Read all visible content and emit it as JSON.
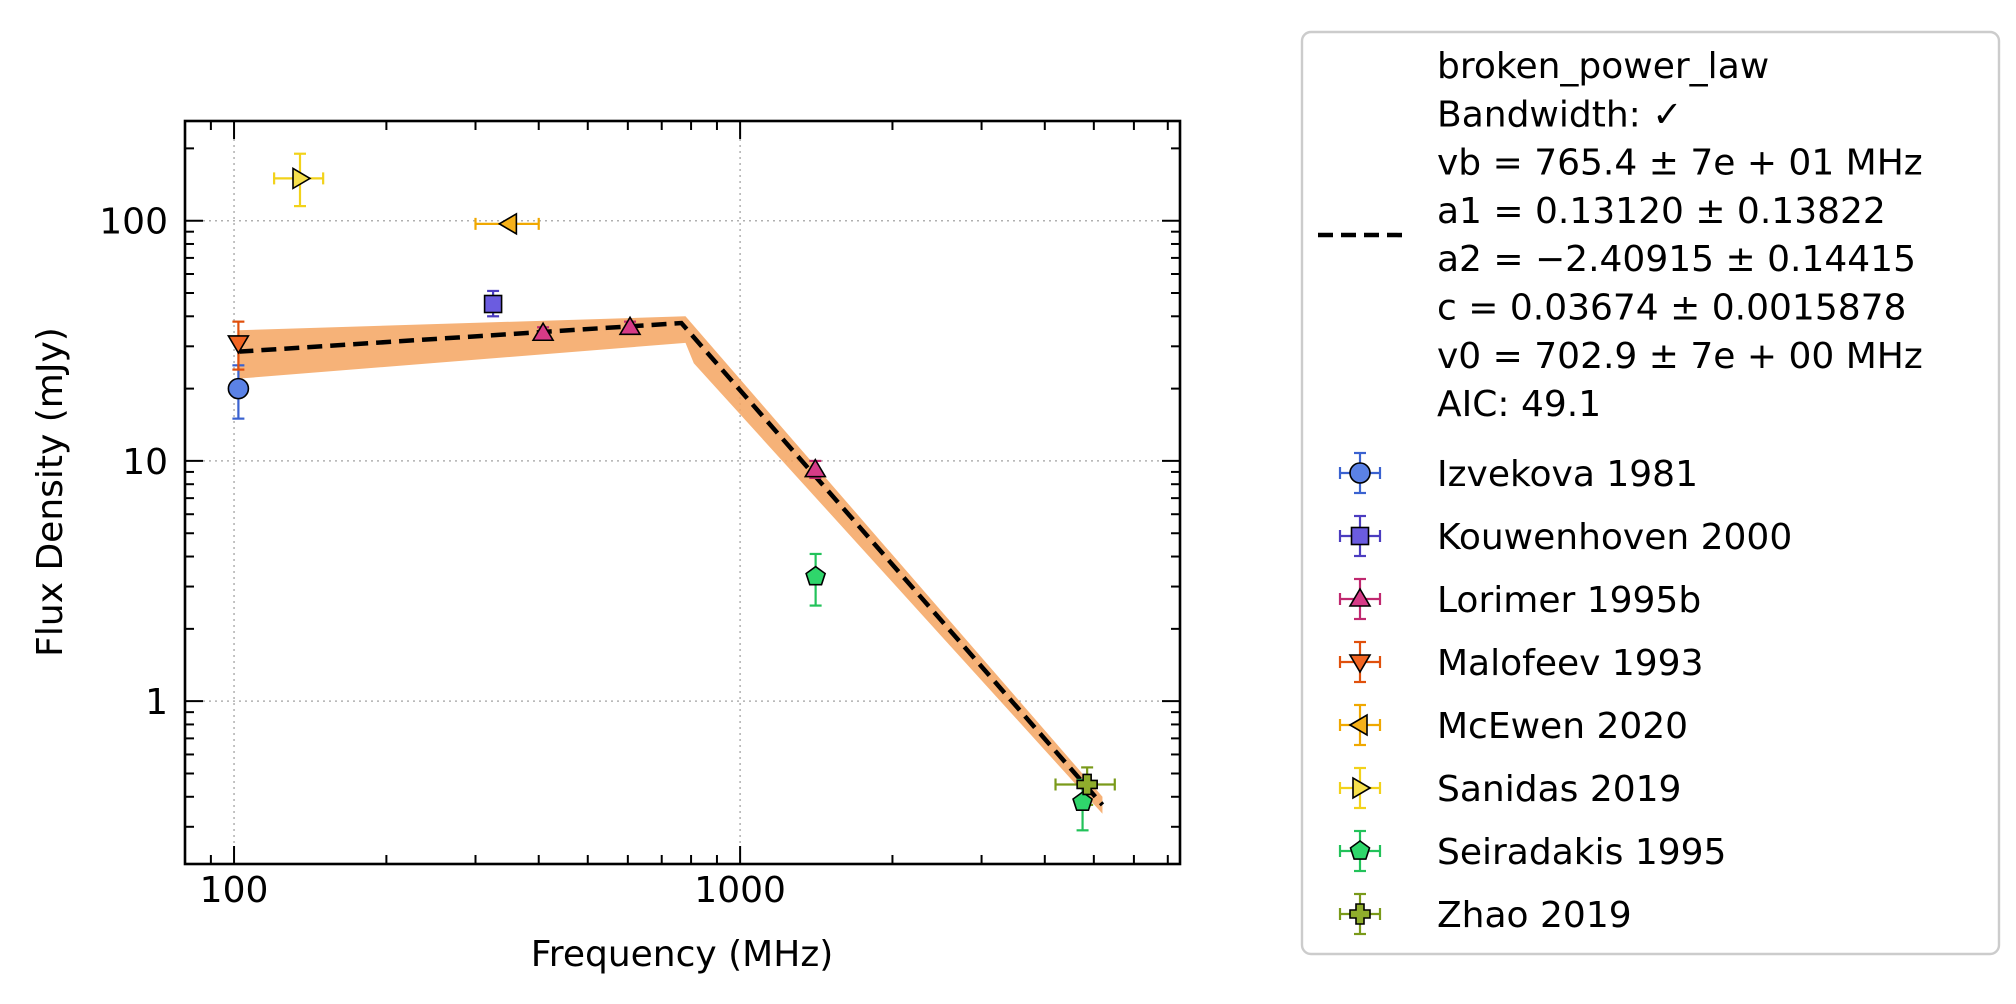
{
  "chart_data": {
    "type": "scatter",
    "xlabel": "Frequency (MHz)",
    "ylabel": "Flux Density (mJy)",
    "xscale": "log",
    "yscale": "log",
    "xlim": [
      80,
      7400
    ],
    "ylim": [
      0.21,
      260
    ],
    "x_ticks": [
      {
        "value": 100,
        "label": "100"
      },
      {
        "value": 1000,
        "label": "1000"
      }
    ],
    "y_ticks": [
      {
        "value": 1,
        "label": "1"
      },
      {
        "value": 10,
        "label": "10"
      },
      {
        "value": 100,
        "label": "100"
      }
    ],
    "grid": true,
    "legend_position": "outside-right",
    "fit": {
      "model": "broken_power_law",
      "legend_lines": [
        "broken_power_law",
        "Bandwidth: ✓",
        "vb = 765.4 ± 7e + 01 MHz",
        "a1 = 0.13120 ± 0.13822",
        "a2 = −2.40915 ± 0.14415",
        "c = 0.03674 ± 0.0015878",
        "v0 = 702.9 ± 7e + 00 MHz",
        "AIC: 49.1"
      ],
      "line_color": "#000000",
      "band_color": "#f4a460",
      "curve": [
        [
          102,
          28.5
        ],
        [
          765.4,
          37.5
        ],
        [
          5200,
          0.37
        ]
      ],
      "band_upper": [
        [
          102,
          35
        ],
        [
          780,
          40
        ],
        [
          5200,
          0.4
        ]
      ],
      "band_lower": [
        [
          102,
          22
        ],
        [
          780,
          31
        ],
        [
          810,
          25.5
        ],
        [
          5200,
          0.34
        ]
      ]
    },
    "series": [
      {
        "name": "Izvekova 1981",
        "marker": "circle",
        "color": "#5b82e6",
        "edge": "#3a62d0",
        "points": [
          {
            "x": 102,
            "y": 20,
            "y_low": 15,
            "y_high": 25
          }
        ]
      },
      {
        "name": "Kouwenhoven 2000",
        "marker": "square",
        "color": "#6b5ce0",
        "edge": "#4b3cc0",
        "points": [
          {
            "x": 325,
            "y": 45,
            "y_low": 40,
            "y_high": 51
          }
        ]
      },
      {
        "name": "Lorimer 1995b",
        "marker": "triangle-up",
        "color": "#d63b87",
        "edge": "#c0286f",
        "points": [
          {
            "x": 408,
            "y": 34,
            "y_low": 32,
            "y_high": 36
          },
          {
            "x": 606,
            "y": 36,
            "y_low": 34,
            "y_high": 38
          },
          {
            "x": 1408,
            "y": 9.2,
            "y_low": 8.5,
            "y_high": 10
          }
        ]
      },
      {
        "name": "Malofeev 1993",
        "marker": "triangle-down",
        "color": "#f26522",
        "edge": "#e0500c",
        "points": [
          {
            "x": 102,
            "y": 31,
            "y_low": 24,
            "y_high": 38
          }
        ]
      },
      {
        "name": "McEwen 2020",
        "marker": "triangle-left",
        "color": "#f6b11a",
        "edge": "#f0a800",
        "points": [
          {
            "x": 350,
            "y": 97,
            "x_low": 300,
            "x_high": 400
          }
        ]
      },
      {
        "name": "Sanidas 2019",
        "marker": "triangle-right",
        "color": "#f7e04d",
        "edge": "#f2d21a",
        "points": [
          {
            "x": 135,
            "y": 150,
            "y_low": 115,
            "y_high": 190,
            "x_low": 120,
            "x_high": 150
          }
        ]
      },
      {
        "name": "Seiradakis 1995",
        "marker": "pentagon",
        "color": "#2fd66b",
        "edge": "#22c25a",
        "points": [
          {
            "x": 1410,
            "y": 3.3,
            "y_low": 2.5,
            "y_high": 4.1
          },
          {
            "x": 4750,
            "y": 0.38,
            "y_low": 0.29,
            "y_high": 0.47
          }
        ]
      },
      {
        "name": "Zhao 2019",
        "marker": "plus",
        "color": "#8fad2c",
        "edge": "#7a9a1a",
        "points": [
          {
            "x": 4850,
            "y": 0.45,
            "y_low": 0.37,
            "y_high": 0.53,
            "x_low": 4200,
            "x_high": 5500
          }
        ]
      }
    ]
  }
}
